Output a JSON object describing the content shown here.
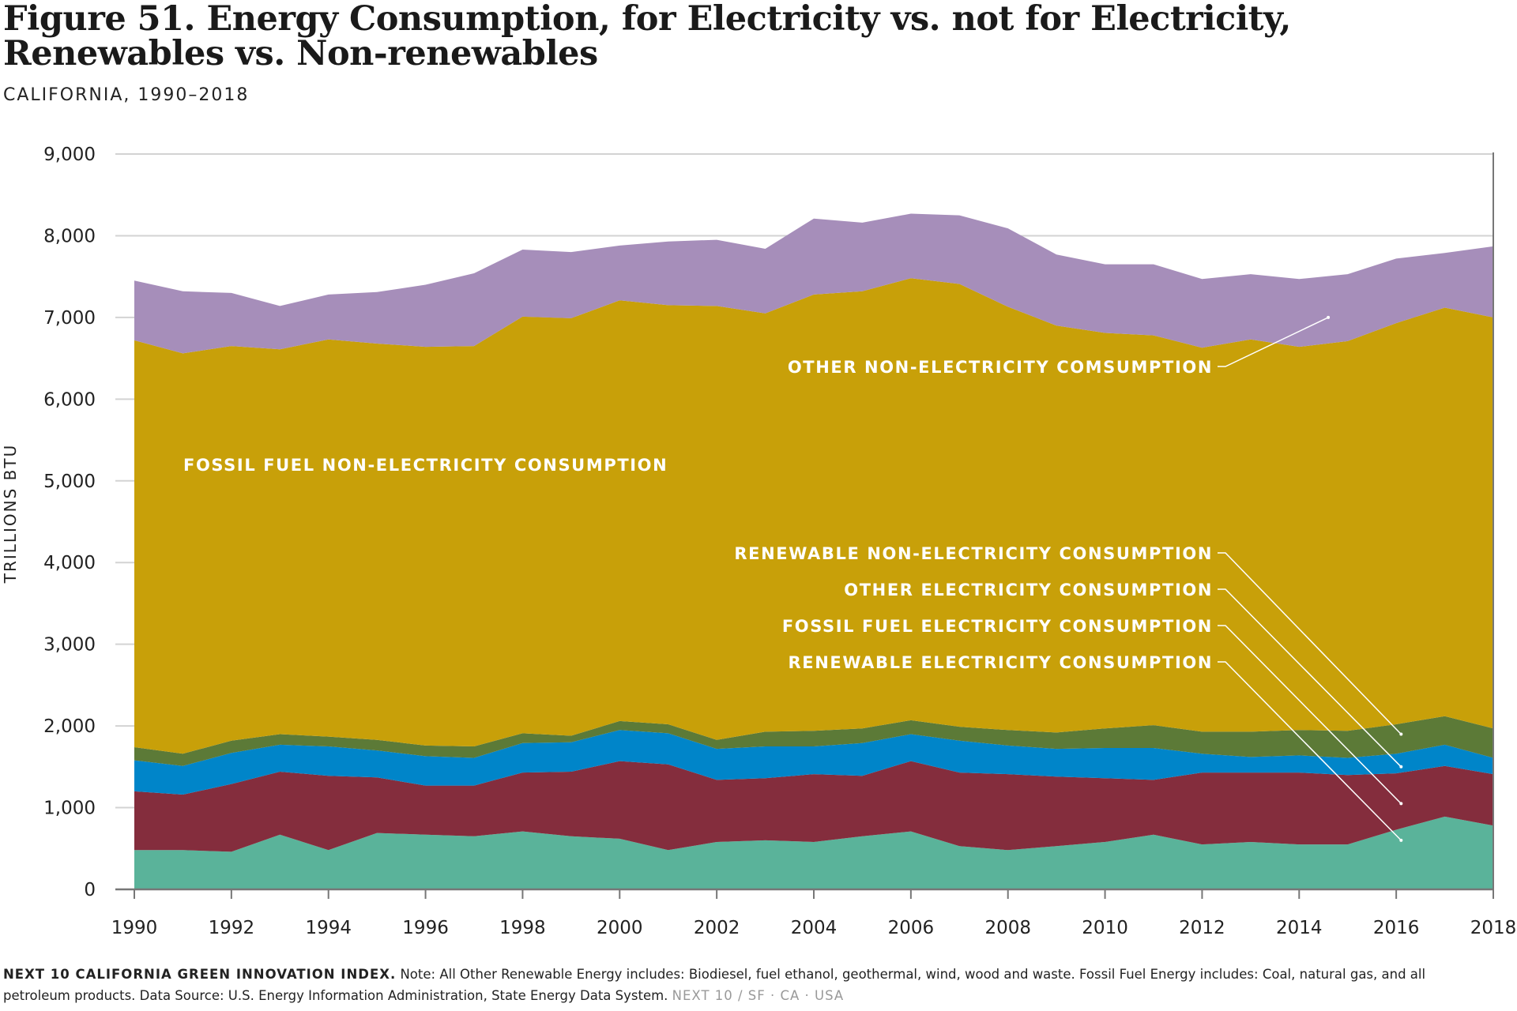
{
  "header": {
    "title_line1": "Figure 51. Energy Consumption, for Electricity vs. not for Electricity,",
    "title_line2": "Renewables vs. Non-renewables",
    "subtitle": "CALIFORNIA, 1990–2018"
  },
  "footer": {
    "brand": "NEXT 10 CALIFORNIA GREEN INNOVATION INDEX.",
    "note": " Note: All Other Renewable Energy includes: Biodiesel, fuel ethanol, geothermal, wind, wood and waste. Fossil Fuel Energy includes: Coal, natural gas, and all petroleum products. Data Source: U.S. Energy Information Administration, State Energy Data System. ",
    "tag": "NEXT 10  /  SF · CA · USA"
  },
  "chart_data": {
    "type": "area",
    "stacked": true,
    "title": "Figure 51. Energy Consumption, for Electricity vs. not for Electricity, Renewables vs. Non-renewables",
    "subtitle": "CALIFORNIA, 1990–2018",
    "xlabel": "",
    "ylabel": "TRILLIONS BTU",
    "xlim": [
      1990,
      2018
    ],
    "ylim": [
      0,
      9000
    ],
    "x_ticks": [
      1990,
      1992,
      1994,
      1996,
      1998,
      2000,
      2002,
      2004,
      2006,
      2008,
      2010,
      2012,
      2014,
      2016,
      2018
    ],
    "y_ticks": [
      0,
      1000,
      2000,
      3000,
      4000,
      5000,
      6000,
      7000,
      8000,
      9000
    ],
    "y_tick_labels": [
      "0",
      "1,000",
      "2,000",
      "3,000",
      "4,000",
      "5,000",
      "6,000",
      "7,000",
      "8,000",
      "9,000"
    ],
    "grid": true,
    "x": [
      1990,
      1991,
      1992,
      1993,
      1994,
      1995,
      1996,
      1997,
      1998,
      1999,
      2000,
      2001,
      2002,
      2003,
      2004,
      2005,
      2006,
      2007,
      2008,
      2009,
      2010,
      2011,
      2012,
      2013,
      2014,
      2015,
      2016,
      2017,
      2018
    ],
    "series": [
      {
        "name": "RENEWABLE ELECTRICITY CONSUMPTION",
        "color": "#5ab39a",
        "values": [
          480,
          480,
          460,
          670,
          480,
          690,
          670,
          650,
          710,
          650,
          620,
          480,
          580,
          600,
          580,
          650,
          710,
          530,
          480,
          530,
          580,
          670,
          550,
          580,
          550,
          550,
          730,
          890,
          780
        ]
      },
      {
        "name": "FOSSIL FUEL ELECTRICITY CONSUMPTION",
        "color": "#842d3d",
        "values": [
          720,
          680,
          830,
          770,
          910,
          680,
          600,
          620,
          720,
          790,
          950,
          1050,
          760,
          760,
          830,
          740,
          860,
          900,
          930,
          850,
          780,
          670,
          880,
          850,
          880,
          850,
          690,
          620,
          630
        ]
      },
      {
        "name": "OTHER ELECTRICITY CONSUMPTION",
        "color": "#0085c9",
        "values": [
          380,
          350,
          380,
          330,
          360,
          330,
          360,
          340,
          360,
          360,
          380,
          380,
          380,
          390,
          340,
          400,
          330,
          390,
          350,
          340,
          370,
          390,
          230,
          190,
          210,
          210,
          240,
          260,
          200
        ]
      },
      {
        "name": "RENEWABLE NON-ELECTRICITY CONSUMPTION",
        "color": "#5c7a37",
        "values": [
          160,
          150,
          150,
          130,
          120,
          130,
          130,
          140,
          120,
          80,
          110,
          110,
          110,
          180,
          190,
          180,
          170,
          170,
          190,
          200,
          240,
          280,
          270,
          310,
          310,
          330,
          360,
          350,
          360
        ]
      },
      {
        "name": "FOSSIL FUEL NON-ELECTRICITY CONSUMPTION",
        "color": "#c8a009",
        "values": [
          4980,
          4900,
          4830,
          4710,
          4860,
          4850,
          4880,
          4900,
          5100,
          5110,
          5150,
          5130,
          5310,
          5120,
          5340,
          5350,
          5410,
          5420,
          5180,
          4980,
          4840,
          4770,
          4700,
          4800,
          4690,
          4770,
          4910,
          5000,
          5030
        ]
      },
      {
        "name": "OTHER NON-ELECTRICITY COMSUMPTION",
        "color": "#a68eba",
        "values": [
          730,
          760,
          650,
          530,
          550,
          630,
          760,
          890,
          820,
          810,
          670,
          780,
          810,
          790,
          930,
          840,
          790,
          840,
          960,
          870,
          840,
          870,
          840,
          800,
          830,
          820,
          790,
          670,
          870
        ]
      }
    ],
    "annotations": [
      {
        "text": "OTHER NON-ELECTRICITY COMSUMPTION",
        "series": "OTHER NON-ELECTRICITY COMSUMPTION",
        "pointer_to": [
          2014.6,
          7000
        ]
      },
      {
        "text": "FOSSIL FUEL NON-ELECTRICITY CONSUMPTION",
        "series": "FOSSIL FUEL NON-ELECTRICITY CONSUMPTION"
      },
      {
        "text": "RENEWABLE NON-ELECTRICITY CONSUMPTION",
        "series": "RENEWABLE NON-ELECTRICITY CONSUMPTION",
        "pointer_to": [
          2016.1,
          1900
        ]
      },
      {
        "text": "OTHER ELECTRICITY CONSUMPTION",
        "series": "OTHER ELECTRICITY CONSUMPTION",
        "pointer_to": [
          2016.1,
          1500
        ]
      },
      {
        "text": "FOSSIL FUEL ELECTRICITY CONSUMPTION",
        "series": "FOSSIL FUEL ELECTRICITY CONSUMPTION",
        "pointer_to": [
          2016.1,
          1050
        ]
      },
      {
        "text": "RENEWABLE ELECTRICITY CONSUMPTION",
        "series": "RENEWABLE ELECTRICITY CONSUMPTION",
        "pointer_to": [
          2016.1,
          600
        ]
      }
    ]
  }
}
